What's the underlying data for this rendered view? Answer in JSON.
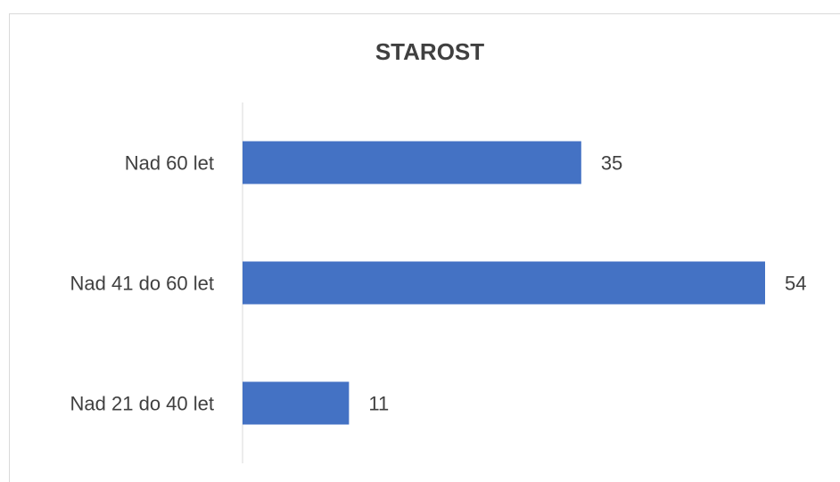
{
  "chart_data": {
    "type": "hbar",
    "title": "STAROST",
    "categories": [
      "Nad 60 let",
      "Nad 41 do 60 let",
      "Nad 21 do 40 let"
    ],
    "values": [
      35,
      54,
      11
    ],
    "color": "#4472c4"
  }
}
